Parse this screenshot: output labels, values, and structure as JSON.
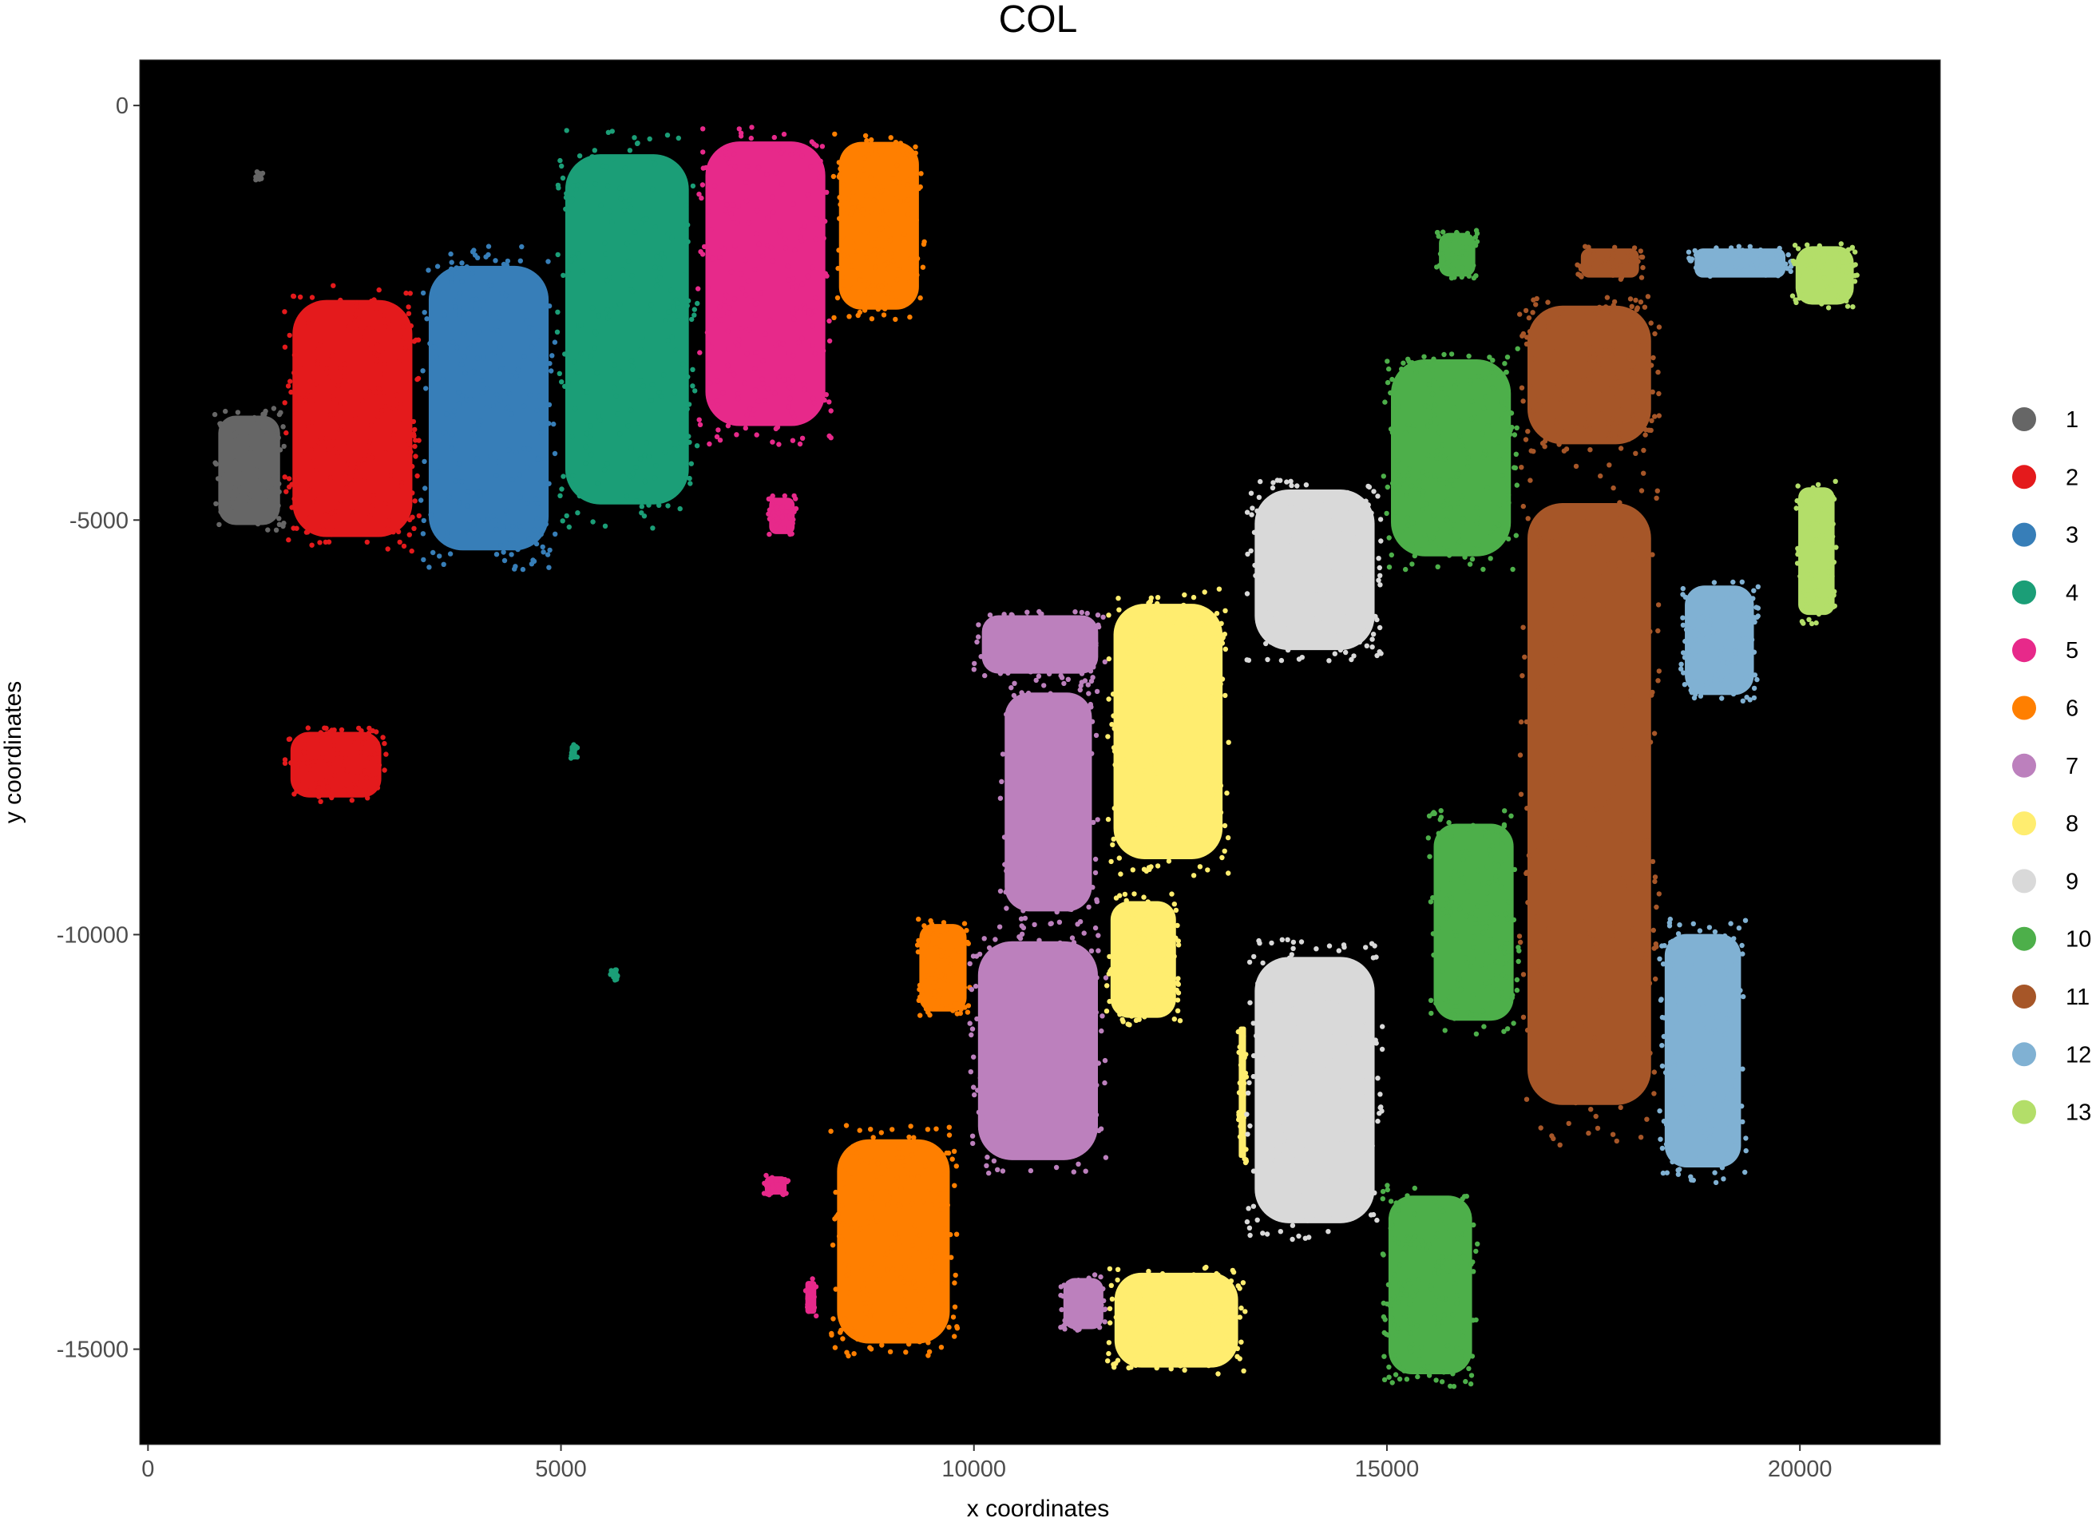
{
  "chart_data": {
    "type": "scatter",
    "title": "COL",
    "xlabel": "x coordinates",
    "ylabel": "y coordinates",
    "xlim": [
      -100,
      21700
    ],
    "ylim": [
      -16150,
      550
    ],
    "x_ticks": [
      0,
      5000,
      10000,
      15000,
      20000
    ],
    "y_ticks": [
      0,
      -5000,
      -10000,
      -15000
    ],
    "x_tick_labels": [
      "0",
      "5000",
      "10000",
      "15000",
      "20000"
    ],
    "y_tick_labels": [
      "0",
      "-5000",
      "-10000",
      "-15000"
    ],
    "background": "#000000",
    "grid": false,
    "legend_position": "right",
    "series": [
      {
        "name": "1",
        "color": "#666666",
        "regions": [
          {
            "x": [
              800,
              1650
            ],
            "y": [
              -5150,
              -3650
            ]
          },
          {
            "x": [
              1300,
              1400
            ],
            "y": [
              -900,
              -800
            ]
          }
        ]
      },
      {
        "name": "2",
        "color": "#E41A1C",
        "regions": [
          {
            "x": [
              1650,
              3300
            ],
            "y": [
              -5400,
              -2150
            ]
          },
          {
            "x": [
              1650,
              2900
            ],
            "y": [
              -8400,
              -7500
            ]
          }
        ]
      },
      {
        "name": "3",
        "color": "#377EB8",
        "regions": [
          {
            "x": [
              3300,
              4950
            ],
            "y": [
              -5600,
              -1700
            ]
          }
        ]
      },
      {
        "name": "4",
        "color": "#1B9E77",
        "regions": [
          {
            "x": [
              4950,
              6650
            ],
            "y": [
              -5100,
              -300
            ]
          },
          {
            "x": [
              5100,
              5200
            ],
            "y": [
              -7900,
              -7700
            ]
          },
          {
            "x": [
              5600,
              5700
            ],
            "y": [
              -10550,
              -10400
            ]
          }
        ]
      },
      {
        "name": "5",
        "color": "#E7298A",
        "regions": [
          {
            "x": [
              6650,
              8300
            ],
            "y": [
              -4100,
              -200
            ]
          },
          {
            "x": [
              7500,
              7850
            ],
            "y": [
              -5200,
              -4700
            ]
          },
          {
            "x": [
              7450,
              7750
            ],
            "y": [
              -13150,
              -12900
            ]
          },
          {
            "x": [
              7950,
              8100
            ],
            "y": [
              -14600,
              -14150
            ]
          }
        ]
      },
      {
        "name": "6",
        "color": "#FF7F00",
        "regions": [
          {
            "x": [
              8300,
              9400
            ],
            "y": [
              -2600,
              -300
            ]
          },
          {
            "x": [
              8250,
              9800
            ],
            "y": [
              -15100,
              -12300
            ]
          },
          {
            "x": [
              9300,
              9950
            ],
            "y": [
              -11000,
              -9800
            ]
          }
        ]
      },
      {
        "name": "7",
        "color": "#BC80BD",
        "regions": [
          {
            "x": [
              10000,
              11600
            ],
            "y": [
              -6900,
              -6100
            ]
          },
          {
            "x": [
              10300,
              11500
            ],
            "y": [
              -9900,
              -6900
            ]
          },
          {
            "x": [
              9950,
              11600
            ],
            "y": [
              -12900,
              -9900
            ]
          },
          {
            "x": [
              11050,
              11600
            ],
            "y": [
              -14800,
              -14100
            ]
          }
        ]
      },
      {
        "name": "8",
        "color": "#FFED6F",
        "regions": [
          {
            "x": [
              11600,
              13100
            ],
            "y": [
              -9300,
              -5800
            ]
          },
          {
            "x": [
              11600,
              12500
            ],
            "y": [
              -11100,
              -9500
            ]
          },
          {
            "x": [
              11600,
              13300
            ],
            "y": [
              -15300,
              -14000
            ]
          },
          {
            "x": [
              13200,
              13300
            ],
            "y": [
              -12800,
              -11000
            ]
          }
        ]
      },
      {
        "name": "9",
        "color": "#D9D9D9",
        "regions": [
          {
            "x": [
              13300,
              14950
            ],
            "y": [
              -6700,
              -4500
            ]
          },
          {
            "x": [
              13300,
              14950
            ],
            "y": [
              -13700,
              -10050
            ]
          }
        ]
      },
      {
        "name": "10",
        "color": "#4DAF4A",
        "regions": [
          {
            "x": [
              14950,
              16600
            ],
            "y": [
              -5600,
              -2900
            ]
          },
          {
            "x": [
              15500,
              16600
            ],
            "y": [
              -11200,
              -8500
            ]
          },
          {
            "x": [
              14950,
              16100
            ],
            "y": [
              -15450,
              -13000
            ]
          },
          {
            "x": [
              15600,
              16100
            ],
            "y": [
              -2100,
              -1500
            ]
          }
        ]
      },
      {
        "name": "11",
        "color": "#A65628",
        "regions": [
          {
            "x": [
              16600,
              18300
            ],
            "y": [
              -4200,
              -2300
            ]
          },
          {
            "x": [
              16600,
              18300
            ],
            "y": [
              -12550,
              -4300
            ]
          },
          {
            "x": [
              17300,
              18100
            ],
            "y": [
              -2100,
              -1700
            ]
          }
        ]
      },
      {
        "name": "12",
        "color": "#80B1D3",
        "regions": [
          {
            "x": [
              18300,
              19350
            ],
            "y": [
              -13000,
              -9800
            ]
          },
          {
            "x": [
              18550,
              19500
            ],
            "y": [
              -7200,
              -5700
            ]
          },
          {
            "x": [
              18650,
              19900
            ],
            "y": [
              -2100,
              -1700
            ]
          }
        ]
      },
      {
        "name": "13",
        "color": "#B3DE69",
        "regions": [
          {
            "x": [
              19900,
              20700
            ],
            "y": [
              -2450,
              -1650
            ]
          },
          {
            "x": [
              19950,
              20450
            ],
            "y": [
              -6250,
              -4500
            ]
          }
        ]
      }
    ]
  }
}
